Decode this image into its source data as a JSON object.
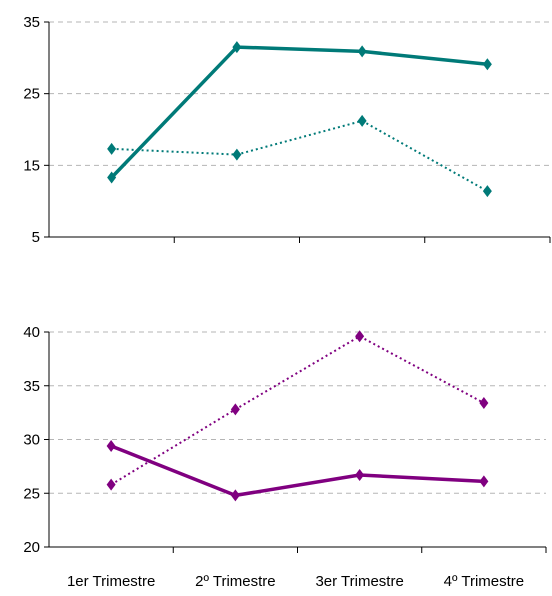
{
  "chart_data": [
    {
      "type": "line",
      "title": "",
      "xlabel": "",
      "ylabel": "",
      "categories": [
        "1er Trimestre",
        "2º Trimestre",
        "3er Trimestre",
        "4º Trimestre"
      ],
      "ylim": [
        5,
        35
      ],
      "yticks": [
        "5",
        "15",
        "25",
        "35"
      ],
      "grid": true,
      "series": [
        {
          "style": "solid",
          "color": "#007a78",
          "values": [
            13.3,
            31.5,
            30.9,
            29.1
          ]
        },
        {
          "style": "dotted",
          "color": "#007a78",
          "values": [
            17.3,
            16.5,
            21.2,
            11.4
          ]
        }
      ]
    },
    {
      "type": "line",
      "title": "",
      "xlabel": "",
      "ylabel": "",
      "categories": [
        "1er Trimestre",
        "2º Trimestre",
        "3er Trimestre",
        "4º Trimestre"
      ],
      "ylim": [
        20,
        40
      ],
      "yticks": [
        "20",
        "25",
        "30",
        "35",
        "40"
      ],
      "grid": true,
      "series": [
        {
          "style": "solid",
          "color": "#800080",
          "values": [
            29.4,
            24.8,
            26.7,
            26.1
          ]
        },
        {
          "style": "dotted",
          "color": "#800080",
          "values": [
            25.8,
            32.8,
            39.6,
            33.4
          ]
        }
      ]
    }
  ]
}
